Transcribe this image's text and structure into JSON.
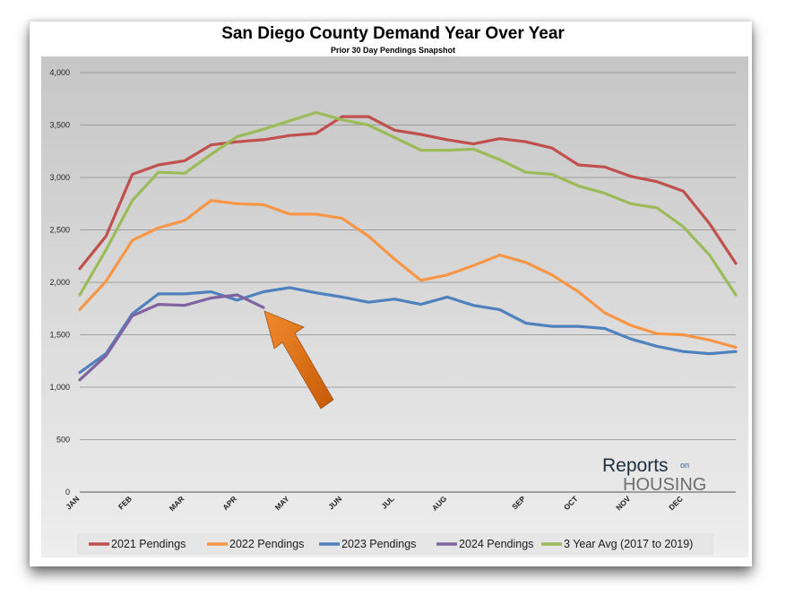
{
  "chart_data": {
    "type": "line",
    "title": "San Diego County Demand Year Over Year",
    "subtitle": "Prior 30 Day Pendings Snapshot",
    "xlabel": "",
    "ylabel": "",
    "ylim": [
      0,
      4000
    ],
    "yticks": [
      0,
      500,
      1000,
      1500,
      2000,
      2500,
      3000,
      3500,
      4000
    ],
    "ytick_labels": [
      "0",
      "500",
      "1,000",
      "1,500",
      "2,000",
      "2,500",
      "3,000",
      "3,500",
      "4,000"
    ],
    "xlim": [
      0,
      50
    ],
    "xticks": [
      {
        "pos": 0,
        "label": "JAN"
      },
      {
        "pos": 4,
        "label": "FEB"
      },
      {
        "pos": 8,
        "label": "MAR"
      },
      {
        "pos": 12,
        "label": "APR"
      },
      {
        "pos": 16,
        "label": "MAY"
      },
      {
        "pos": 20,
        "label": "JUN"
      },
      {
        "pos": 24,
        "label": "JUL"
      },
      {
        "pos": 28,
        "label": "AUG"
      },
      {
        "pos": 34,
        "label": "SEP"
      },
      {
        "pos": 38,
        "label": "OCT"
      },
      {
        "pos": 42,
        "label": "NOV"
      },
      {
        "pos": 46,
        "label": "DEC"
      }
    ],
    "legend_position": "bottom",
    "grid": true,
    "series": [
      {
        "name": "2021 Pendings",
        "color": "#c0504d",
        "x": [
          0,
          2,
          4,
          6,
          8,
          10,
          12,
          14,
          16,
          18,
          20,
          22,
          24,
          26,
          28,
          30,
          32,
          34,
          36,
          38,
          40,
          42,
          44,
          46,
          48,
          50
        ],
        "values": [
          2130,
          2440,
          3030,
          3120,
          3160,
          3310,
          3340,
          3360,
          3400,
          3420,
          3580,
          3580,
          3450,
          3410,
          3360,
          3320,
          3370,
          3340,
          3280,
          3120,
          3100,
          3010,
          2960,
          2870,
          2560,
          2180
        ]
      },
      {
        "name": "2022 Pendings",
        "color": "#f79646",
        "x": [
          0,
          2,
          4,
          6,
          8,
          10,
          12,
          14,
          16,
          18,
          20,
          22,
          24,
          26,
          28,
          30,
          32,
          34,
          36,
          38,
          40,
          42,
          44,
          46,
          48,
          50
        ],
        "values": [
          1740,
          2010,
          2400,
          2520,
          2590,
          2780,
          2750,
          2740,
          2650,
          2650,
          2610,
          2440,
          2220,
          2020,
          2070,
          2160,
          2260,
          2190,
          2070,
          1910,
          1710,
          1590,
          1510,
          1500,
          1450,
          1380
        ]
      },
      {
        "name": "2023 Pendings",
        "color": "#4f81bd",
        "x": [
          0,
          2,
          4,
          6,
          8,
          10,
          12,
          14,
          16,
          18,
          20,
          22,
          24,
          26,
          28,
          30,
          32,
          34,
          36,
          38,
          40,
          42,
          44,
          46,
          48,
          50
        ],
        "values": [
          1140,
          1320,
          1700,
          1890,
          1890,
          1910,
          1830,
          1910,
          1950,
          1900,
          1860,
          1810,
          1840,
          1790,
          1860,
          1780,
          1740,
          1610,
          1580,
          1580,
          1560,
          1460,
          1390,
          1340,
          1320,
          1340
        ]
      },
      {
        "name": "2024 Pendings",
        "color": "#8064a2",
        "x": [
          0,
          2,
          4,
          6,
          8,
          10,
          12,
          14
        ],
        "values": [
          1070,
          1300,
          1680,
          1790,
          1780,
          1850,
          1880,
          1760
        ]
      },
      {
        "name": "3 Year Avg (2017 to 2019)",
        "color": "#9bbb59",
        "x": [
          0,
          2,
          4,
          6,
          8,
          10,
          12,
          14,
          16,
          18,
          20,
          22,
          24,
          26,
          28,
          30,
          32,
          34,
          36,
          38,
          40,
          42,
          44,
          46,
          48,
          50
        ],
        "values": [
          1880,
          2310,
          2780,
          3050,
          3040,
          3220,
          3390,
          3460,
          3540,
          3620,
          3550,
          3500,
          3380,
          3260,
          3260,
          3270,
          3170,
          3050,
          3030,
          2920,
          2850,
          2750,
          2710,
          2530,
          2260,
          1880
        ]
      }
    ]
  },
  "annotation": {
    "arrow_color": "#e36c09"
  },
  "logo": {
    "line1": "Reports",
    "line1_suffix": "on",
    "line2": "HOUSING",
    "color_dark": "#1f2d3d",
    "color_grey": "#6e6e6e",
    "color_blue": "#2e5e8e"
  }
}
